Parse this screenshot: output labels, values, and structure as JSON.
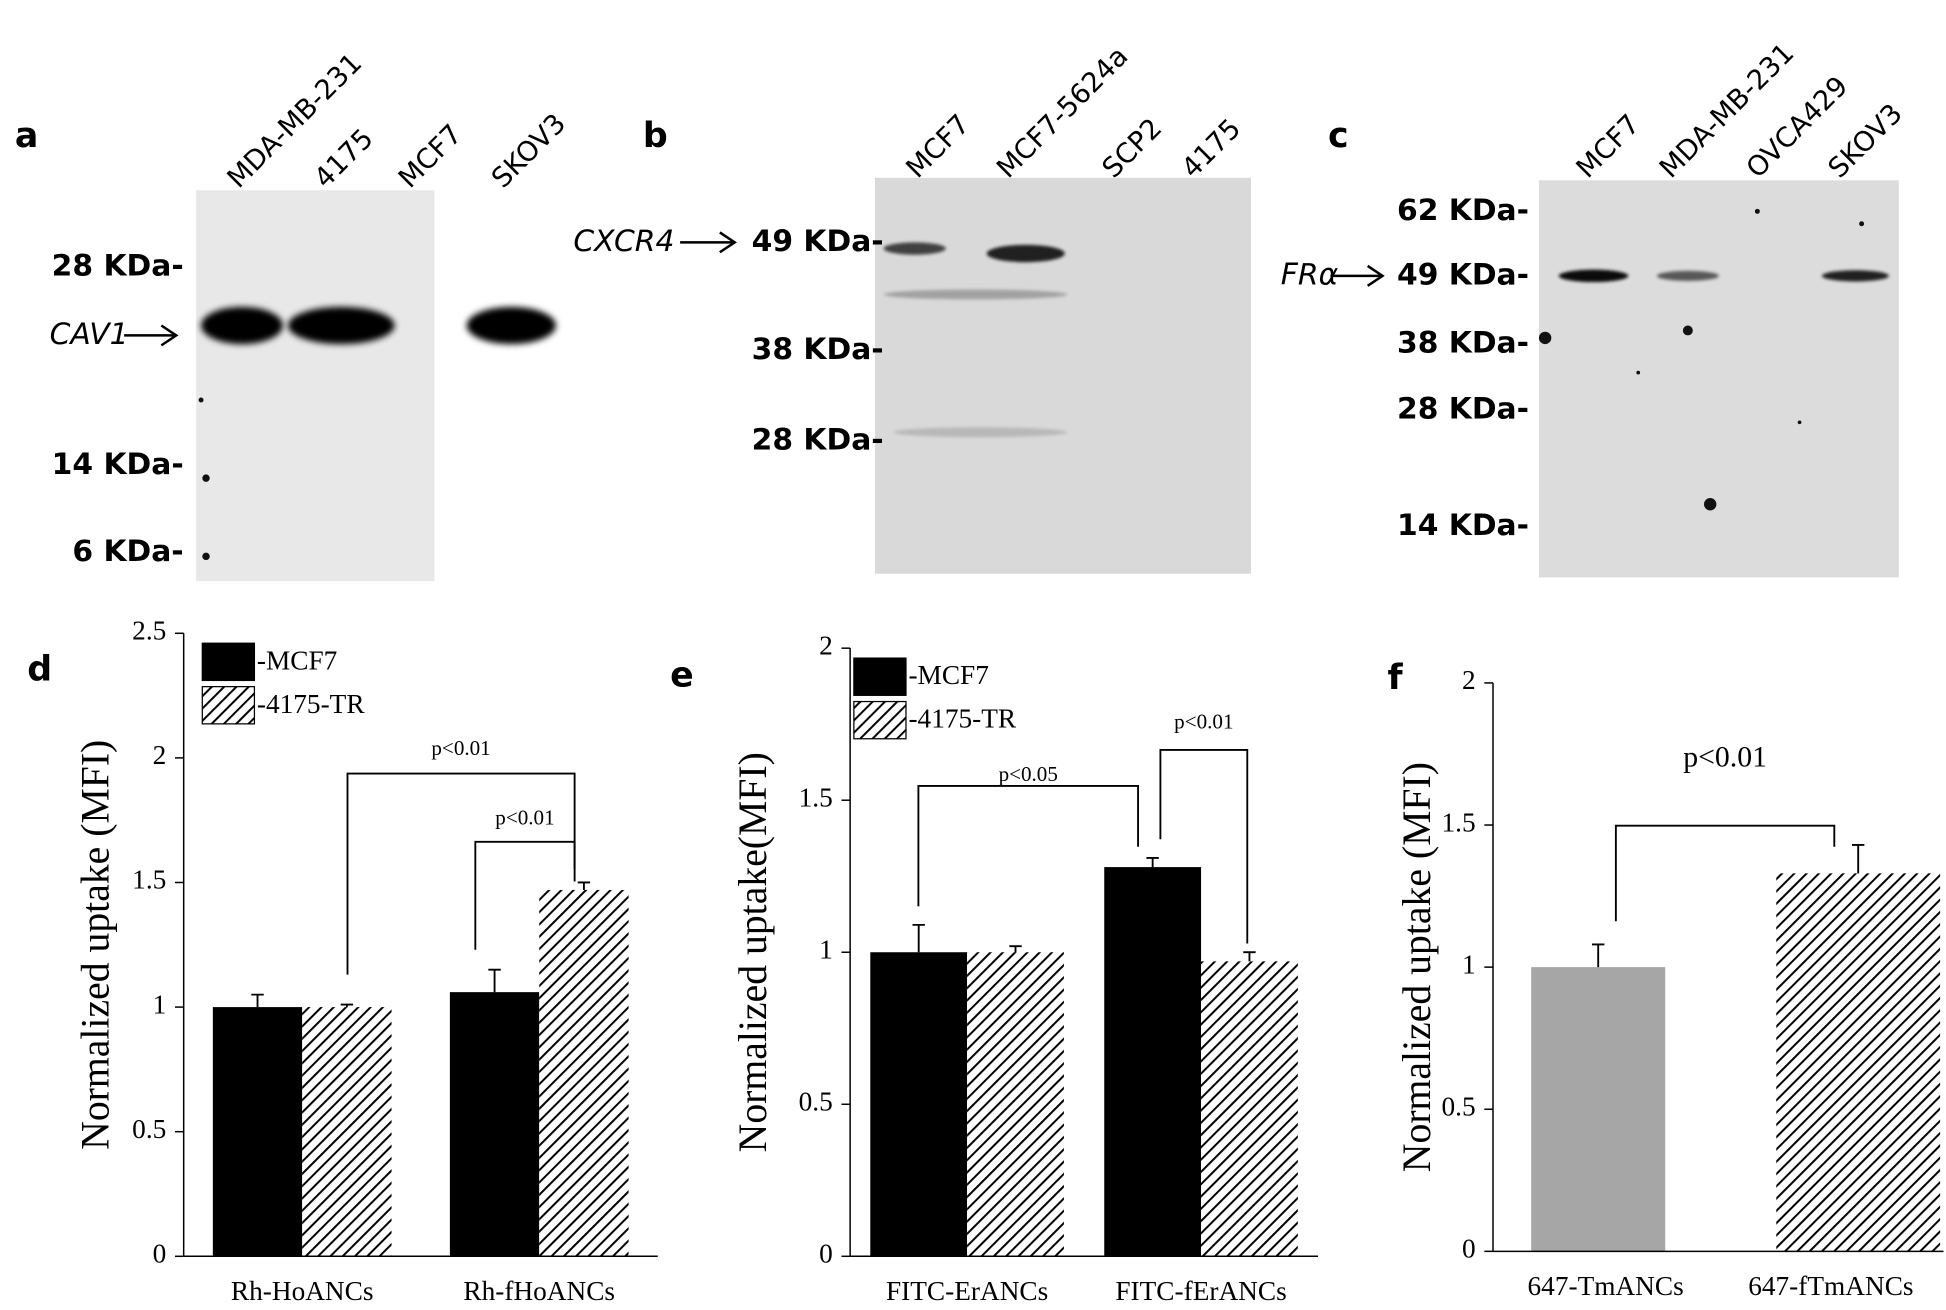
{
  "blots": [
    {
      "panel": "a",
      "protein": "CAV1",
      "lanes": [
        "MDA-MB-231",
        "4175",
        "MCF7",
        "SKOV3"
      ],
      "markers": [
        "28 KDa-",
        "14 KDa-",
        "6 KDa-"
      ]
    },
    {
      "panel": "b",
      "protein": "CXCR4",
      "lanes": [
        "MCF7",
        "MCF7-5624a",
        "SCP2",
        "4175"
      ],
      "markers": [
        "49 KDa-",
        "38 KDa-",
        "28 KDa-"
      ]
    },
    {
      "panel": "c",
      "protein": "FRα",
      "lanes": [
        "MCF7",
        "MDA-MB-231",
        "OVCA429",
        "SKOV3"
      ],
      "markers": [
        "62 KDa-",
        "49 KDa-",
        "38 KDa-",
        "28 KDa-",
        "14 KDa-"
      ]
    }
  ],
  "chart_data": [
    {
      "type": "bar",
      "panel": "d",
      "y_label": "Normalized uptake (MFI)",
      "categories": [
        "Rh-HoANCs",
        "Rh-fHoANCs"
      ],
      "series": [
        {
          "name": "-MCF7",
          "color": "#000000",
          "values": [
            1.0,
            1.06
          ],
          "errors": [
            0.05,
            0.09
          ]
        },
        {
          "name": "-4175-TR",
          "color": "hatched",
          "values": [
            1.0,
            1.47
          ],
          "errors": [
            0.01,
            0.03
          ]
        }
      ],
      "ylim": [
        0,
        2.5
      ],
      "yticks": [
        0,
        0.5,
        1,
        1.5,
        2,
        2.5
      ],
      "annotations": [
        "p<0.01",
        "p<0.01"
      ]
    },
    {
      "type": "bar",
      "panel": "e",
      "y_label": "Normalized uptake(MFI)",
      "categories": [
        "FITC-ErANCs",
        "FITC-fErANCs"
      ],
      "series": [
        {
          "name": "-MCF7",
          "color": "#000000",
          "values": [
            1.0,
            1.28
          ],
          "errors": [
            0.09,
            0.03
          ]
        },
        {
          "name": "-4175-TR",
          "color": "hatched",
          "values": [
            1.0,
            0.97
          ],
          "errors": [
            0.02,
            0.03
          ]
        }
      ],
      "ylim": [
        0,
        2
      ],
      "yticks": [
        0,
        0.5,
        1,
        1.5,
        2
      ],
      "annotations": [
        "p<0.05",
        "p<0.01"
      ]
    },
    {
      "type": "bar",
      "panel": "f",
      "y_label": "Normalized uptake (MFI)",
      "categories": [
        "647-TmANCs",
        "647-fTmANCs"
      ],
      "values": [
        1.0,
        1.33
      ],
      "errors": [
        0.08,
        0.1
      ],
      "colors": [
        "#a6a6a6",
        "hatched"
      ],
      "ylim": [
        0,
        2
      ],
      "yticks": [
        0,
        0.5,
        1,
        1.5,
        2
      ],
      "annotations": [
        "p<0.01"
      ]
    }
  ]
}
